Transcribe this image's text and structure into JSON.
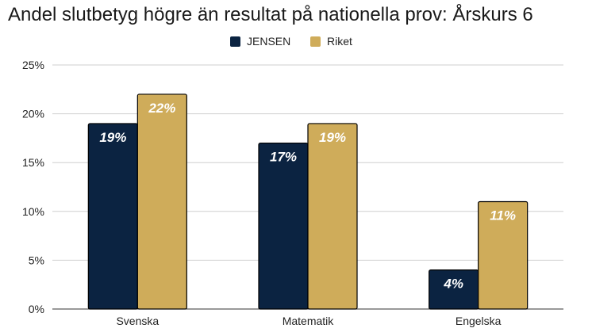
{
  "chart_data": {
    "type": "bar",
    "title": "Andel slutbetyg högre än resultat på nationella prov: Årskurs 6",
    "categories": [
      "Svenska",
      "Matematik",
      "Engelska"
    ],
    "series": [
      {
        "name": "JENSEN",
        "values": [
          19,
          17,
          4
        ],
        "color": "#0b2341",
        "labels": [
          "19%",
          "17%",
          "4%"
        ]
      },
      {
        "name": "Riket",
        "values": [
          22,
          19,
          11
        ],
        "color": "#cfac5a",
        "labels": [
          "22%",
          "19%",
          "11%"
        ]
      }
    ],
    "ylim": [
      0,
      25
    ],
    "yticks": [
      0,
      5,
      10,
      15,
      20,
      25
    ],
    "ytick_labels": [
      "0%",
      "5%",
      "10%",
      "15%",
      "20%",
      "25%"
    ],
    "xlabel": "",
    "ylabel": "",
    "grid": true,
    "legend": "top-center"
  }
}
